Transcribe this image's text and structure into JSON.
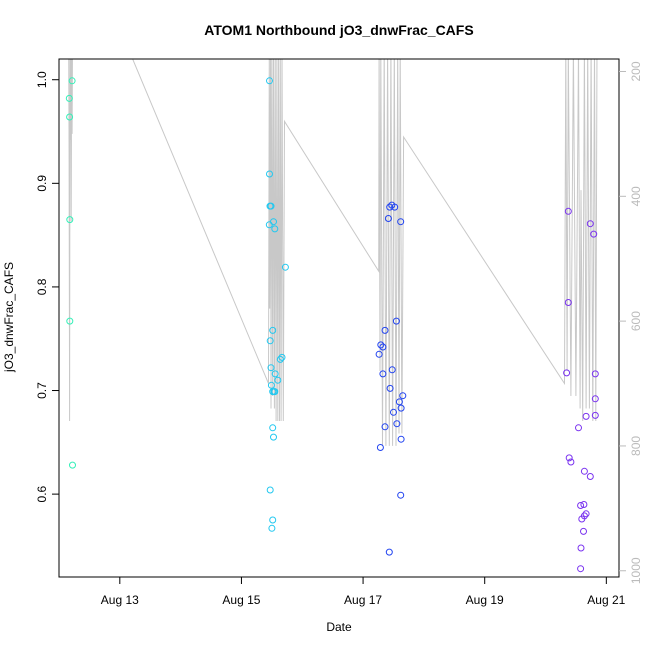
{
  "chart_data": {
    "type": "scatter",
    "title": "ATOM1 Northbound jO3_dnwFrac_CAFS",
    "xlabel": "Date",
    "ylabel": "jO3_dnwFrac_CAFS",
    "xlim": [
      "2016-08-12T00:00",
      "2016-08-21T05:00"
    ],
    "ylim": [
      0.52,
      1.02
    ],
    "y2lim": [
      1010,
      180
    ],
    "x_ticks": [
      {
        "date": "2016-08-13T00:00",
        "label": "Aug 13"
      },
      {
        "date": "2016-08-15T00:00",
        "label": "Aug 15"
      },
      {
        "date": "2016-08-17T00:00",
        "label": "Aug 17"
      },
      {
        "date": "2016-08-19T00:00",
        "label": "Aug 19"
      },
      {
        "date": "2016-08-21T00:00",
        "label": "Aug 21"
      }
    ],
    "y_ticks": [
      0.6,
      0.7,
      0.8,
      0.9,
      1.0
    ],
    "y_tick_labels": [
      "0.6",
      "0.7",
      "0.8",
      "0.9",
      "1.0"
    ],
    "y2_ticks": [
      200,
      400,
      600,
      800,
      1000
    ],
    "y2_tick_labels": [
      "200",
      "400",
      "600",
      "800",
      "1000"
    ],
    "grid": false,
    "colors": {
      "altitude_line": "#c8c8c8",
      "right_axis": "#bbbbbb",
      "axes": "#000000"
    },
    "series": [
      {
        "color": "#33f0b8",
        "points": [
          [
            "2016-08-12T04:05",
            0.982
          ],
          [
            "2016-08-12T04:10",
            0.964
          ],
          [
            "2016-08-12T04:15",
            0.865
          ],
          [
            "2016-08-12T04:15",
            0.767
          ],
          [
            "2016-08-12T05:10",
            0.999
          ],
          [
            "2016-08-12T05:20",
            0.628
          ]
        ]
      },
      {
        "color": "#22c8f0",
        "points": [
          [
            "2016-08-15T11:05",
            0.999
          ],
          [
            "2016-08-15T11:05",
            0.909
          ],
          [
            "2016-08-15T11:15",
            0.878
          ],
          [
            "2016-08-15T11:00",
            0.86
          ],
          [
            "2016-08-15T11:40",
            0.878
          ],
          [
            "2016-08-15T12:40",
            0.863
          ],
          [
            "2016-08-15T13:10",
            0.856
          ],
          [
            "2016-08-15T17:20",
            0.819
          ],
          [
            "2016-08-15T12:20",
            0.758
          ],
          [
            "2016-08-15T11:20",
            0.748
          ],
          [
            "2016-08-15T16:00",
            0.732
          ],
          [
            "2016-08-15T15:20",
            0.73
          ],
          [
            "2016-08-15T11:40",
            0.722
          ],
          [
            "2016-08-15T13:20",
            0.716
          ],
          [
            "2016-08-15T14:20",
            0.71
          ],
          [
            "2016-08-15T11:50",
            0.705
          ],
          [
            "2016-08-15T12:20",
            0.699
          ],
          [
            "2016-08-15T12:50",
            0.699
          ],
          [
            "2016-08-15T13:10",
            0.699
          ],
          [
            "2016-08-15T11:20",
            0.604
          ],
          [
            "2016-08-15T12:20",
            0.664
          ],
          [
            "2016-08-15T12:40",
            0.655
          ],
          [
            "2016-08-15T12:20",
            0.575
          ],
          [
            "2016-08-15T12:00",
            0.567
          ]
        ]
      },
      {
        "color": "#2244f0",
        "points": [
          [
            "2016-08-17T10:30",
            0.877
          ],
          [
            "2016-08-17T11:20",
            0.879
          ],
          [
            "2016-08-17T12:30",
            0.877
          ],
          [
            "2016-08-17T10:00",
            0.866
          ],
          [
            "2016-08-17T14:50",
            0.863
          ],
          [
            "2016-08-17T13:10",
            0.767
          ],
          [
            "2016-08-17T08:40",
            0.758
          ],
          [
            "2016-08-17T07:00",
            0.744
          ],
          [
            "2016-08-17T07:50",
            0.742
          ],
          [
            "2016-08-17T06:20",
            0.735
          ],
          [
            "2016-08-17T11:30",
            0.72
          ],
          [
            "2016-08-17T07:50",
            0.716
          ],
          [
            "2016-08-17T10:40",
            0.702
          ],
          [
            "2016-08-17T15:40",
            0.695
          ],
          [
            "2016-08-17T14:20",
            0.689
          ],
          [
            "2016-08-17T15:00",
            0.683
          ],
          [
            "2016-08-17T12:00",
            0.679
          ],
          [
            "2016-08-17T13:20",
            0.668
          ],
          [
            "2016-08-17T08:40",
            0.665
          ],
          [
            "2016-08-17T15:00",
            0.653
          ],
          [
            "2016-08-17T06:50",
            0.645
          ],
          [
            "2016-08-17T14:50",
            0.599
          ],
          [
            "2016-08-17T10:20",
            0.544
          ]
        ]
      },
      {
        "color": "#7a33f0",
        "points": [
          [
            "2016-08-20T09:00",
            0.873
          ],
          [
            "2016-08-20T17:40",
            0.861
          ],
          [
            "2016-08-20T19:00",
            0.851
          ],
          [
            "2016-08-20T09:00",
            0.785
          ],
          [
            "2016-08-20T08:20",
            0.717
          ],
          [
            "2016-08-20T19:40",
            0.716
          ],
          [
            "2016-08-20T19:40",
            0.692
          ],
          [
            "2016-08-20T16:00",
            0.675
          ],
          [
            "2016-08-20T19:40",
            0.676
          ],
          [
            "2016-08-20T13:00",
            0.664
          ],
          [
            "2016-08-20T09:20",
            0.635
          ],
          [
            "2016-08-20T10:00",
            0.631
          ],
          [
            "2016-08-20T15:20",
            0.622
          ],
          [
            "2016-08-20T17:40",
            0.617
          ],
          [
            "2016-08-20T13:50",
            0.589
          ],
          [
            "2016-08-20T15:10",
            0.59
          ],
          [
            "2016-08-20T16:00",
            0.581
          ],
          [
            "2016-08-20T15:20",
            0.579
          ],
          [
            "2016-08-20T14:20",
            0.576
          ],
          [
            "2016-08-20T15:00",
            0.564
          ],
          [
            "2016-08-20T14:00",
            0.548
          ],
          [
            "2016-08-20T13:50",
            0.528
          ]
        ]
      }
    ],
    "altitude_trace": [
      [
        "2016-08-12T03:50",
        160
      ],
      [
        "2016-08-12T04:00",
        340
      ],
      [
        "2016-08-12T04:10",
        760
      ],
      [
        "2016-08-12T04:20",
        140
      ],
      [
        "2016-08-12T04:30",
        310
      ],
      [
        "2016-08-12T04:40",
        160
      ],
      [
        "2016-08-12T04:50",
        440
      ],
      [
        "2016-08-12T05:00",
        140
      ],
      [
        "2016-08-12T05:10",
        300
      ],
      [
        "2016-08-12T05:20",
        160
      ],
      [
        "2016-08-13T03:00",
        160
      ],
      [
        "2016-08-15T10:40",
        700
      ],
      [
        "2016-08-15T11:00",
        160
      ],
      [
        "2016-08-15T11:10",
        580
      ],
      [
        "2016-08-15T11:30",
        160
      ],
      [
        "2016-08-15T11:40",
        740
      ],
      [
        "2016-08-15T12:00",
        160
      ],
      [
        "2016-08-15T12:20",
        720
      ],
      [
        "2016-08-15T12:40",
        160
      ],
      [
        "2016-08-15T13:00",
        740
      ],
      [
        "2016-08-15T13:20",
        160
      ],
      [
        "2016-08-15T13:40",
        760
      ],
      [
        "2016-08-15T14:00",
        160
      ],
      [
        "2016-08-15T14:20",
        760
      ],
      [
        "2016-08-15T14:40",
        160
      ],
      [
        "2016-08-15T15:00",
        760
      ],
      [
        "2016-08-15T15:20",
        160
      ],
      [
        "2016-08-15T15:40",
        760
      ],
      [
        "2016-08-15T16:00",
        160
      ],
      [
        "2016-08-15T16:30",
        760
      ],
      [
        "2016-08-15T17:00",
        280
      ],
      [
        "2016-08-17T06:10",
        520
      ],
      [
        "2016-08-17T06:20",
        160
      ],
      [
        "2016-08-17T06:40",
        680
      ],
      [
        "2016-08-17T07:00",
        160
      ],
      [
        "2016-08-17T07:40",
        800
      ],
      [
        "2016-08-17T08:20",
        160
      ],
      [
        "2016-08-17T09:00",
        800
      ],
      [
        "2016-08-17T09:40",
        160
      ],
      [
        "2016-08-17T10:20",
        800
      ],
      [
        "2016-08-17T11:00",
        160
      ],
      [
        "2016-08-17T11:40",
        800
      ],
      [
        "2016-08-17T12:20",
        160
      ],
      [
        "2016-08-17T13:00",
        800
      ],
      [
        "2016-08-17T13:40",
        160
      ],
      [
        "2016-08-17T14:10",
        780
      ],
      [
        "2016-08-17T14:40",
        160
      ],
      [
        "2016-08-17T15:20",
        780
      ],
      [
        "2016-08-17T16:00",
        305
      ],
      [
        "2016-08-20T07:30",
        700
      ],
      [
        "2016-08-20T08:00",
        160
      ],
      [
        "2016-08-20T08:30",
        680
      ],
      [
        "2016-08-20T09:00",
        160
      ],
      [
        "2016-08-20T10:00",
        720
      ],
      [
        "2016-08-20T11:00",
        160
      ],
      [
        "2016-08-20T12:00",
        720
      ],
      [
        "2016-08-20T13:00",
        160
      ],
      [
        "2016-08-20T13:40",
        740
      ],
      [
        "2016-08-20T14:00",
        390
      ],
      [
        "2016-08-20T14:40",
        760
      ],
      [
        "2016-08-20T15:20",
        160
      ],
      [
        "2016-08-20T16:00",
        740
      ],
      [
        "2016-08-20T16:40",
        160
      ],
      [
        "2016-08-20T17:20",
        740
      ],
      [
        "2016-08-20T18:00",
        160
      ],
      [
        "2016-08-20T18:40",
        760
      ],
      [
        "2016-08-20T19:20",
        160
      ],
      [
        "2016-08-20T19:50",
        760
      ],
      [
        "2016-08-20T20:20",
        160
      ]
    ]
  }
}
